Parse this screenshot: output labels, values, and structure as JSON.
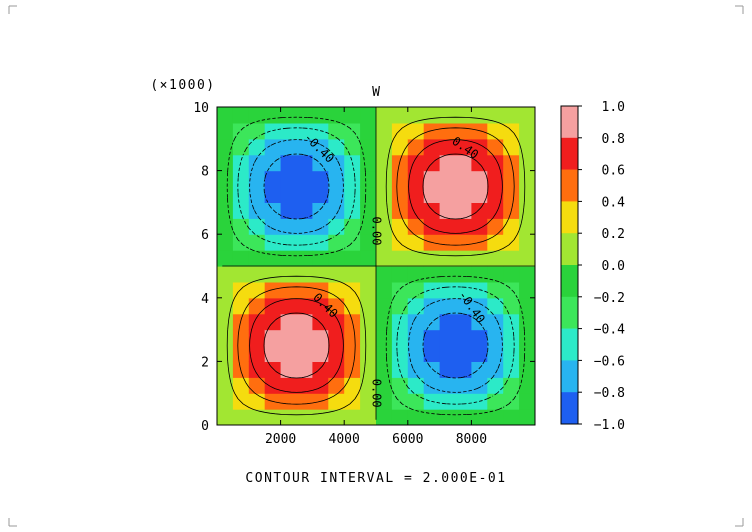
{
  "chart_data": {
    "type": "heatmap",
    "subtype": "filled-contour",
    "title": "W",
    "y_scale_label": "(×1000)",
    "footer": "CONTOUR INTERVAL = 2.000E-01",
    "xlim": [
      0,
      10000
    ],
    "ylim": [
      0,
      10000
    ],
    "x_ticks": [
      2000,
      4000,
      6000,
      8000
    ],
    "x_tick_labels": [
      "2000",
      "4000",
      "6000",
      "8000"
    ],
    "y_ticks": [
      0,
      2000,
      4000,
      6000,
      8000,
      10000
    ],
    "y_tick_labels": [
      "0",
      "2",
      "4",
      "6",
      "8",
      "10"
    ],
    "field": "W(x,y) = sin(2πx/10000)·sin(2πy/10000)",
    "grid_resolution": 20,
    "contour_levels": [
      -1.0,
      -0.8,
      -0.6,
      -0.4,
      -0.2,
      0.0,
      0.2,
      0.4,
      0.6,
      0.8,
      1.0
    ],
    "colorbar": {
      "bins": [
        {
          "from": -1.0,
          "to": -0.8,
          "color": "#1e5ff0"
        },
        {
          "from": -0.8,
          "to": -0.6,
          "color": "#28b4f0"
        },
        {
          "from": -0.6,
          "to": -0.4,
          "color": "#2ceac8"
        },
        {
          "from": -0.4,
          "to": -0.2,
          "color": "#3ce65a"
        },
        {
          "from": -0.2,
          "to": 0.0,
          "color": "#2ad33b"
        },
        {
          "from": 0.0,
          "to": 0.2,
          "color": "#a2e632"
        },
        {
          "from": 0.2,
          "to": 0.4,
          "color": "#f5dc0f"
        },
        {
          "from": 0.4,
          "to": 0.6,
          "color": "#ff6e0f"
        },
        {
          "from": 0.6,
          "to": 0.8,
          "color": "#f01e1e"
        },
        {
          "from": 0.8,
          "to": 1.0,
          "color": "#f5a0a0"
        }
      ],
      "tick_labels": [
        "1.0",
        "0.8",
        "0.6",
        "0.4",
        "0.2",
        "0.0",
        "−0.2",
        "−0.4",
        "−0.6",
        "−0.8",
        "−1.0"
      ]
    },
    "contour_labels": [
      {
        "text": "-0.40",
        "x": 3200,
        "y": 8700,
        "angle": 45
      },
      {
        "text": "0.40",
        "x": 7800,
        "y": 8700,
        "angle": 35
      },
      {
        "text": "0.00",
        "x": 5000,
        "y": 6100,
        "angle": 90
      },
      {
        "text": "0.40",
        "x": 3400,
        "y": 3750,
        "angle": 45
      },
      {
        "text": "-0.40",
        "x": 8000,
        "y": 3700,
        "angle": 55
      },
      {
        "text": "0.00",
        "x": 5000,
        "y": 1000,
        "angle": 90
      }
    ]
  }
}
